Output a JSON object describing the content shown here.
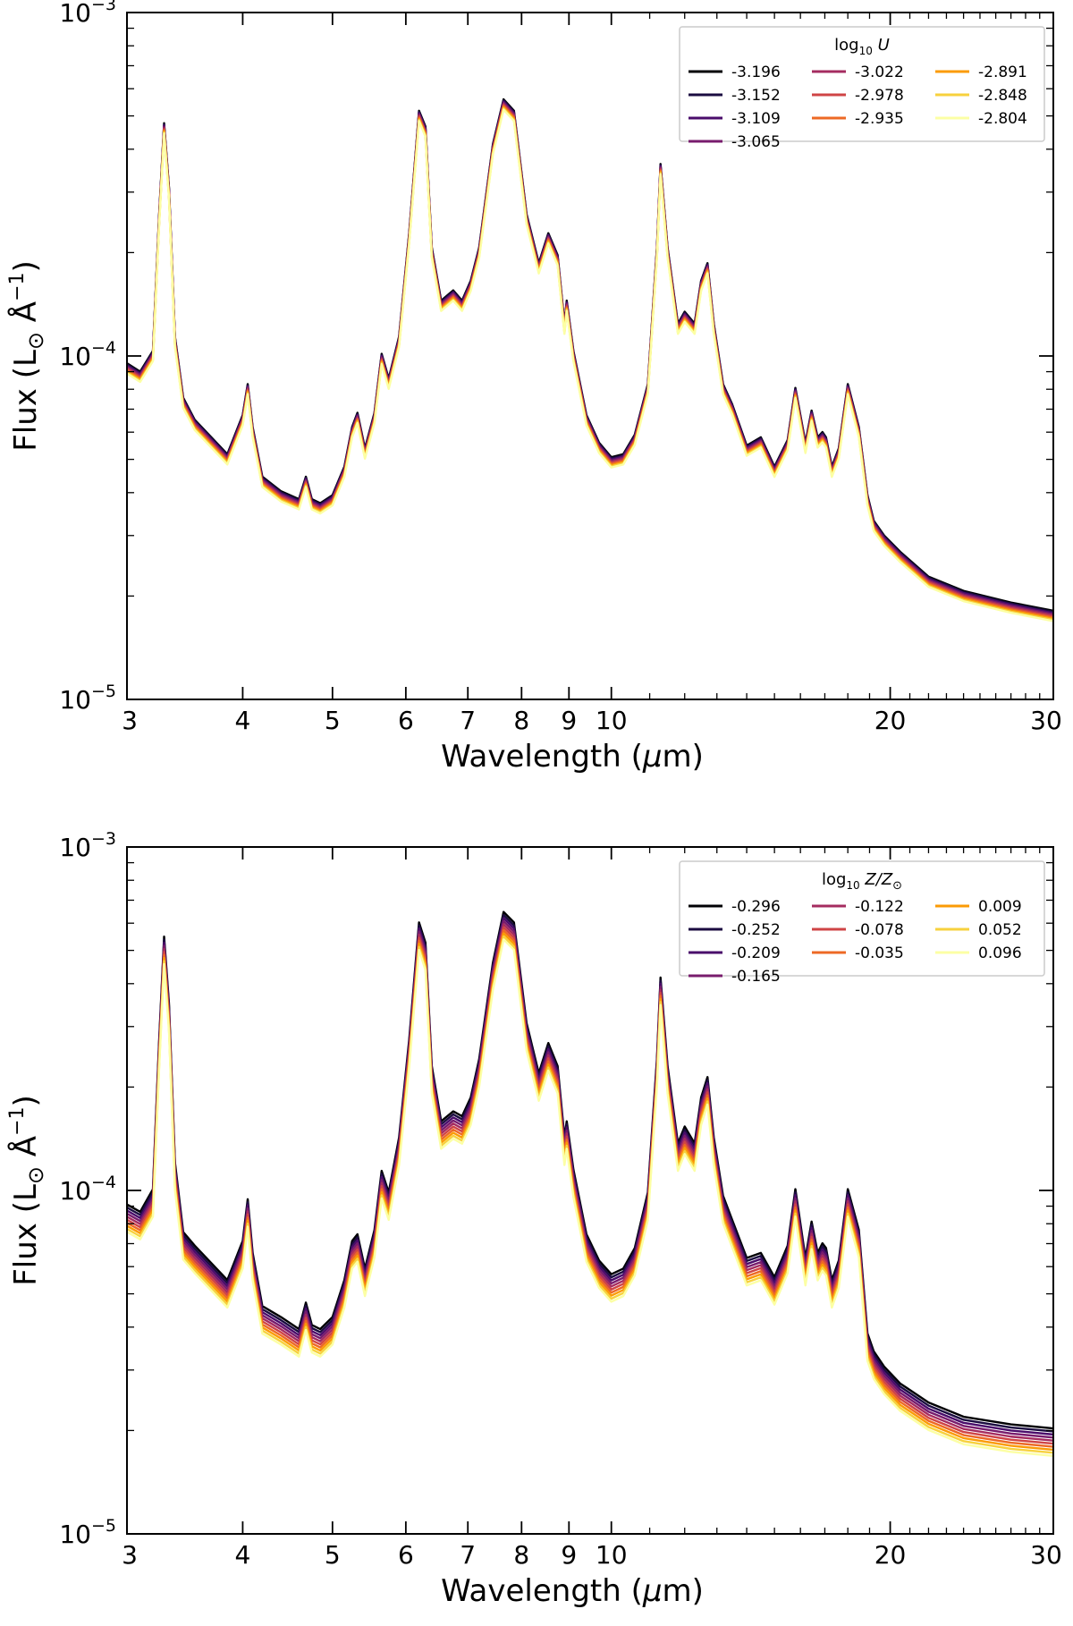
{
  "chart_data": [
    {
      "type": "line",
      "xlabel_prefix": "Wavelength (",
      "xlabel_unit": "μ",
      "xlabel_suffix": "m)",
      "ylabel_prefix": "Flux (L",
      "ylabel_sun": "⊙",
      "ylabel_angstrom": " Å",
      "ylabel_exp": "−1",
      "ylabel_suffix": ")",
      "xscale": "log",
      "yscale": "log",
      "xlim": [
        3,
        30
      ],
      "ylim": [
        1e-05,
        0.001
      ],
      "x_ticks": [
        {
          "value": 3,
          "label": "3"
        },
        {
          "value": 4,
          "label": "4"
        },
        {
          "value": 5,
          "label": "5"
        },
        {
          "value": 6,
          "label": "6"
        },
        {
          "value": 7,
          "label": "7"
        },
        {
          "value": 8,
          "label": "8"
        },
        {
          "value": 9,
          "label": "9"
        },
        {
          "value": 10,
          "label": "10"
        },
        {
          "value": 20,
          "label": "20"
        },
        {
          "value": 30,
          "label": "30"
        }
      ],
      "y_ticks": [
        {
          "value": 1e-05,
          "base": "10",
          "exp": "−5"
        },
        {
          "value": 0.0001,
          "base": "10",
          "exp": "−4"
        },
        {
          "value": 0.001,
          "base": "10",
          "exp": "−3"
        }
      ],
      "legend": {
        "title_prefix": "log",
        "title_sub": "10",
        "title_var": "U",
        "title_suffix": "",
        "position": "top-right",
        "entries": [
          "-3.196",
          "-3.152",
          "-3.109",
          "-3.065",
          "-3.022",
          "-2.978",
          "-2.935",
          "-2.891",
          "-2.848",
          "-2.804"
        ]
      },
      "colors": [
        "#000004",
        "#1b0c41",
        "#4a0c6b",
        "#781c6d",
        "#a52c60",
        "#cf4446",
        "#ed6925",
        "#fb9b06",
        "#f7d13d",
        "#fcffa4"
      ],
      "wavelength_um": [
        3.0,
        3.1,
        3.2,
        3.25,
        3.29,
        3.33,
        3.38,
        3.45,
        3.55,
        3.7,
        3.85,
        4.0,
        4.05,
        4.1,
        4.2,
        4.4,
        4.6,
        4.68,
        4.75,
        4.85,
        5.0,
        5.15,
        5.25,
        5.32,
        5.42,
        5.55,
        5.65,
        5.75,
        5.9,
        6.05,
        6.2,
        6.3,
        6.4,
        6.55,
        6.75,
        6.9,
        7.05,
        7.2,
        7.45,
        7.65,
        7.85,
        8.1,
        8.35,
        8.55,
        8.75,
        8.9,
        8.95,
        9.1,
        9.4,
        9.7,
        10.0,
        10.3,
        10.6,
        10.95,
        11.2,
        11.3,
        11.5,
        11.8,
        12.0,
        12.3,
        12.5,
        12.7,
        12.9,
        13.2,
        13.5,
        14.0,
        14.5,
        15.0,
        15.5,
        15.8,
        16.2,
        16.45,
        16.7,
        16.9,
        17.05,
        17.3,
        17.6,
        18.0,
        18.5,
        18.9,
        19.2,
        19.7,
        20.5,
        22.0,
        24.0,
        27.0,
        30.0
      ],
      "flux": [
        9.2e-05,
        8.7e-05,
        0.0001,
        0.00025,
        0.00046,
        0.0003,
        0.00011,
        7.3e-05,
        6.3e-05,
        5.6e-05,
        5e-05,
        6.5e-05,
        8e-05,
        6e-05,
        4.3e-05,
        3.9e-05,
        3.7e-05,
        4.3e-05,
        3.7e-05,
        3.6e-05,
        3.8e-05,
        4.6e-05,
        6e-05,
        6.6e-05,
        5.2e-05,
        6.6e-05,
        9.8e-05,
        8.3e-05,
        0.00011,
        0.00022,
        0.0005,
        0.00045,
        0.0002,
        0.00014,
        0.00015,
        0.00014,
        0.00016,
        0.0002,
        0.0004,
        0.00054,
        0.0005,
        0.00025,
        0.00018,
        0.00022,
        0.00019,
        0.00012,
        0.00014,
        0.0001,
        6.5e-05,
        5.4e-05,
        4.9e-05,
        5e-05,
        5.7e-05,
        8e-05,
        0.0002,
        0.00035,
        0.0002,
        0.00012,
        0.00013,
        0.00012,
        0.00016,
        0.00018,
        0.00012,
        8e-05,
        7e-05,
        5.3e-05,
        5.6e-05,
        4.6e-05,
        5.5e-05,
        7.8e-05,
        5.4e-05,
        6.7e-05,
        5.6e-05,
        5.8e-05,
        5.6e-05,
        4.6e-05,
        5.2e-05,
        8e-05,
        6e-05,
        3.8e-05,
        3.2e-05,
        2.9e-05,
        2.6e-05,
        2.2e-05,
        2e-05,
        1.85e-05,
        1.75e-05
      ],
      "series_spread_dex": 0.03
    },
    {
      "type": "line",
      "xlabel_prefix": "Wavelength (",
      "xlabel_unit": "μ",
      "xlabel_suffix": "m)",
      "ylabel_prefix": "Flux (L",
      "ylabel_sun": "⊙",
      "ylabel_angstrom": " Å",
      "ylabel_exp": "−1",
      "ylabel_suffix": ")",
      "xscale": "log",
      "yscale": "log",
      "xlim": [
        3,
        30
      ],
      "ylim": [
        1e-05,
        0.001
      ],
      "x_ticks": [
        {
          "value": 3,
          "label": "3"
        },
        {
          "value": 4,
          "label": "4"
        },
        {
          "value": 5,
          "label": "5"
        },
        {
          "value": 6,
          "label": "6"
        },
        {
          "value": 7,
          "label": "7"
        },
        {
          "value": 8,
          "label": "8"
        },
        {
          "value": 9,
          "label": "9"
        },
        {
          "value": 10,
          "label": "10"
        },
        {
          "value": 20,
          "label": "20"
        },
        {
          "value": 30,
          "label": "30"
        }
      ],
      "y_ticks": [
        {
          "value": 1e-05,
          "base": "10",
          "exp": "−5"
        },
        {
          "value": 0.0001,
          "base": "10",
          "exp": "−4"
        },
        {
          "value": 0.001,
          "base": "10",
          "exp": "−3"
        }
      ],
      "legend": {
        "title_prefix": "log",
        "title_sub": "10",
        "title_var": "Z",
        "title_suffix": "/Z",
        "title_sun": "⊙",
        "position": "top-right",
        "entries": [
          "-0.296",
          "-0.252",
          "-0.209",
          "-0.165",
          "-0.122",
          "-0.078",
          "-0.035",
          "0.009",
          "0.052",
          "0.096"
        ]
      },
      "colors": [
        "#000004",
        "#1b0c41",
        "#4a0c6b",
        "#781c6d",
        "#a52c60",
        "#cf4446",
        "#ed6925",
        "#fb9b06",
        "#f7d13d",
        "#fcffa4"
      ],
      "wavelength_um": [
        3.0,
        3.1,
        3.2,
        3.25,
        3.29,
        3.33,
        3.38,
        3.45,
        3.55,
        3.7,
        3.85,
        4.0,
        4.05,
        4.1,
        4.2,
        4.4,
        4.6,
        4.68,
        4.75,
        4.85,
        5.0,
        5.15,
        5.25,
        5.32,
        5.42,
        5.55,
        5.65,
        5.75,
        5.9,
        6.05,
        6.2,
        6.3,
        6.4,
        6.55,
        6.75,
        6.9,
        7.05,
        7.2,
        7.45,
        7.65,
        7.85,
        8.1,
        8.35,
        8.55,
        8.75,
        8.9,
        8.95,
        9.1,
        9.4,
        9.7,
        10.0,
        10.3,
        10.6,
        10.95,
        11.2,
        11.3,
        11.5,
        11.8,
        12.0,
        12.3,
        12.5,
        12.7,
        12.9,
        13.2,
        13.5,
        14.0,
        14.5,
        15.0,
        15.5,
        15.8,
        16.2,
        16.45,
        16.7,
        16.9,
        17.05,
        17.3,
        17.6,
        18.0,
        18.5,
        18.9,
        19.2,
        19.7,
        20.5,
        22.0,
        24.0,
        27.0,
        30.0
      ],
      "flux": [
        8.3e-05,
        7.9e-05,
        9.2e-05,
        0.00025,
        0.0005,
        0.00032,
        0.00011,
        6.9e-05,
        6.3e-05,
        5.6e-05,
        5e-05,
        6.5e-05,
        8.6e-05,
        6e-05,
        4.2e-05,
        3.9e-05,
        3.6e-05,
        4.3e-05,
        3.7e-05,
        3.6e-05,
        3.9e-05,
        5e-05,
        6.5e-05,
        6.8e-05,
        5.4e-05,
        7e-05,
        0.000104,
        9e-05,
        0.00013,
        0.00025,
        0.00055,
        0.00048,
        0.00021,
        0.000145,
        0.000155,
        0.00015,
        0.00017,
        0.00022,
        0.00042,
        0.00059,
        0.00055,
        0.00028,
        0.0002,
        0.000245,
        0.00021,
        0.00013,
        0.000145,
        0.000105,
        6.8e-05,
        5.7e-05,
        5.2e-05,
        5.4e-05,
        6.2e-05,
        9e-05,
        0.00022,
        0.00038,
        0.00021,
        0.000125,
        0.00014,
        0.000125,
        0.00017,
        0.000195,
        0.00013,
        8.8e-05,
        7.5e-05,
        5.8e-05,
        6e-05,
        5.1e-05,
        6.3e-05,
        9.2e-05,
        5.8e-05,
        7.4e-05,
        6e-05,
        6.4e-05,
        6.2e-05,
        5e-05,
        5.7e-05,
        9.2e-05,
        7e-05,
        3.5e-05,
        3.1e-05,
        2.8e-05,
        2.5e-05,
        2.2e-05,
        2e-05,
        1.9e-05,
        1.85e-05
      ],
      "series_spread_dex": 0.08
    }
  ]
}
